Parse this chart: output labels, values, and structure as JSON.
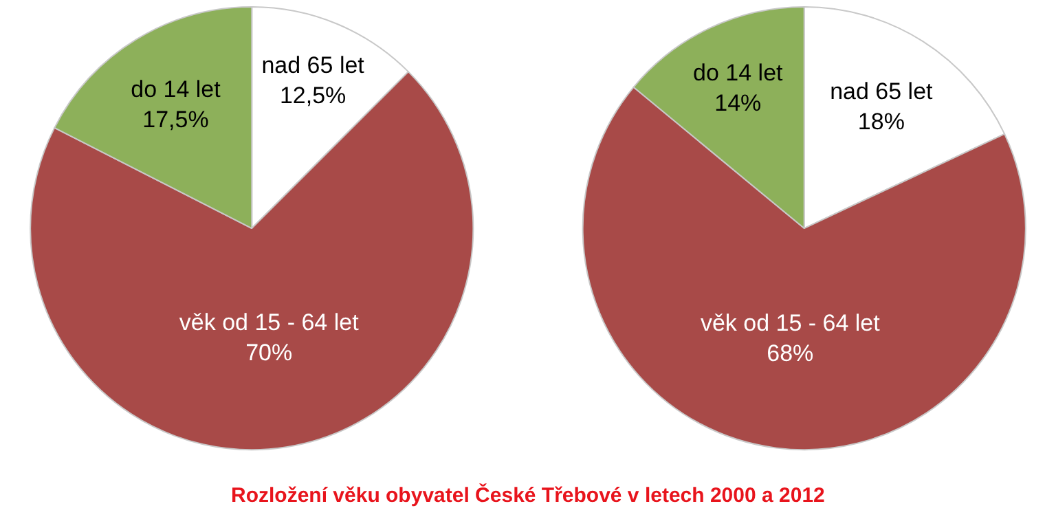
{
  "chart_data": [
    {
      "type": "pie",
      "categories": [
        "nad 65 let",
        "věk od 15 - 64 let",
        "do 14 let"
      ],
      "values": [
        12.5,
        70,
        17.5
      ],
      "colors": [
        "#ffffff",
        "#a84a48",
        "#8db05a"
      ],
      "value_labels": [
        "12,5%",
        "70%",
        "17,5%"
      ]
    },
    {
      "type": "pie",
      "categories": [
        "nad 65 let",
        "věk od 15 - 64 let",
        "do 14 let"
      ],
      "values": [
        18,
        68,
        14
      ],
      "colors": [
        "#ffffff",
        "#a84a48",
        "#8db05a"
      ],
      "value_labels": [
        "18%",
        "68%",
        "14%"
      ],
      "annotations": [
        "Rozložení věku obyvatel České Třebové v letech 2000 a 2012"
      ]
    }
  ]
}
